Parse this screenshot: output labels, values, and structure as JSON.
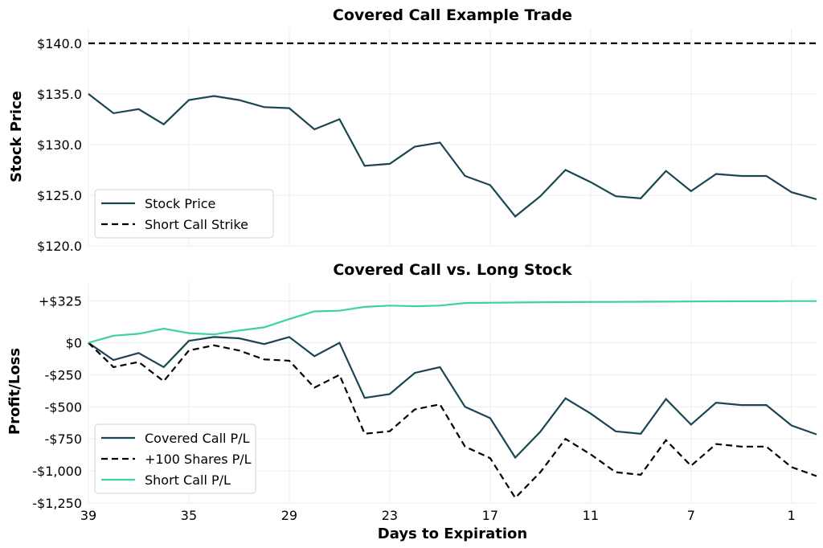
{
  "chart_data": [
    {
      "type": "line",
      "title": "Covered Call Example Trade",
      "xlabel": "",
      "ylabel": "Stock Price",
      "x": [
        39,
        38,
        37,
        36,
        35,
        32,
        31,
        30,
        29,
        28,
        25,
        24,
        23,
        22,
        21,
        18,
        17,
        16,
        15,
        14,
        11,
        10,
        9,
        8,
        7,
        4,
        3,
        2,
        1,
        0
      ],
      "x_tick_labels": [
        "39",
        "35",
        "29",
        "23",
        "17",
        "11",
        "7",
        "1"
      ],
      "y_tick_labels": [
        "$120.0",
        "$125.0",
        "$130.0",
        "$135.0",
        "$140.0"
      ],
      "ylim": [
        120,
        141.5
      ],
      "grid": true,
      "legend_placement": "lower-left",
      "series": [
        {
          "name": "Stock Price",
          "color": "#1b4552",
          "style": "solid",
          "values": [
            135.0,
            133.1,
            133.5,
            132.0,
            134.4,
            134.8,
            134.4,
            133.7,
            133.6,
            131.5,
            132.5,
            127.9,
            128.1,
            129.8,
            130.2,
            126.9,
            126.0,
            122.9,
            124.9,
            127.5,
            126.3,
            124.9,
            124.7,
            127.4,
            125.4,
            127.1,
            126.9,
            126.9,
            125.3,
            124.6
          ]
        },
        {
          "name": "Short Call Strike",
          "color": "#000000",
          "style": "dashed",
          "values": [
            140,
            140,
            140,
            140,
            140,
            140,
            140,
            140,
            140,
            140,
            140,
            140,
            140,
            140,
            140,
            140,
            140,
            140,
            140,
            140,
            140,
            140,
            140,
            140,
            140,
            140,
            140,
            140,
            140,
            140
          ]
        }
      ]
    },
    {
      "type": "line",
      "title": "Covered Call vs. Long Stock",
      "xlabel": "Days to Expiration",
      "ylabel": "Profit/Loss",
      "x": [
        39,
        38,
        37,
        36,
        35,
        32,
        31,
        30,
        29,
        28,
        25,
        24,
        23,
        22,
        21,
        18,
        17,
        16,
        15,
        14,
        11,
        10,
        9,
        8,
        7,
        4,
        3,
        2,
        1,
        0
      ],
      "x_tick_labels": [
        "39",
        "35",
        "29",
        "23",
        "17",
        "11",
        "7",
        "1"
      ],
      "y_ticks": [
        -1250,
        -1000,
        -750,
        -500,
        -250,
        0,
        325
      ],
      "y_tick_labels": [
        "-$1,250",
        "-$1,000",
        "-$750",
        "-$500",
        "-$250",
        "$0",
        "+$325"
      ],
      "ylim": [
        -1250,
        480
      ],
      "grid": true,
      "legend_placement": "lower-left",
      "series": [
        {
          "name": "Covered Call P/L",
          "color": "#1b4552",
          "style": "solid",
          "values": [
            0,
            -135,
            -80,
            -190,
            15,
            45,
            35,
            -10,
            45,
            -105,
            0,
            -430,
            -400,
            -235,
            -190,
            -500,
            -588,
            -896,
            -694,
            -433,
            -552,
            -691,
            -710,
            -439,
            -638,
            -467,
            -486,
            -486,
            -645,
            -715
          ]
        },
        {
          "name": "+100 Shares P/L",
          "color": "#000000",
          "style": "dashed",
          "values": [
            0,
            -190,
            -150,
            -300,
            -60,
            -20,
            -60,
            -130,
            -140,
            -350,
            -250,
            -710,
            -690,
            -520,
            -480,
            -810,
            -900,
            -1210,
            -1010,
            -750,
            -870,
            -1010,
            -1030,
            -760,
            -960,
            -790,
            -810,
            -810,
            -970,
            -1040
          ]
        },
        {
          "name": "Short Call P/L",
          "color": "#3fd1a0",
          "style": "solid",
          "values": [
            0,
            55,
            70,
            110,
            75,
            65,
            95,
            120,
            185,
            245,
            250,
            280,
            290,
            285,
            290,
            310,
            312,
            314,
            316,
            317,
            318,
            319,
            320,
            321,
            322,
            323,
            324,
            324,
            325,
            325
          ]
        }
      ]
    }
  ]
}
